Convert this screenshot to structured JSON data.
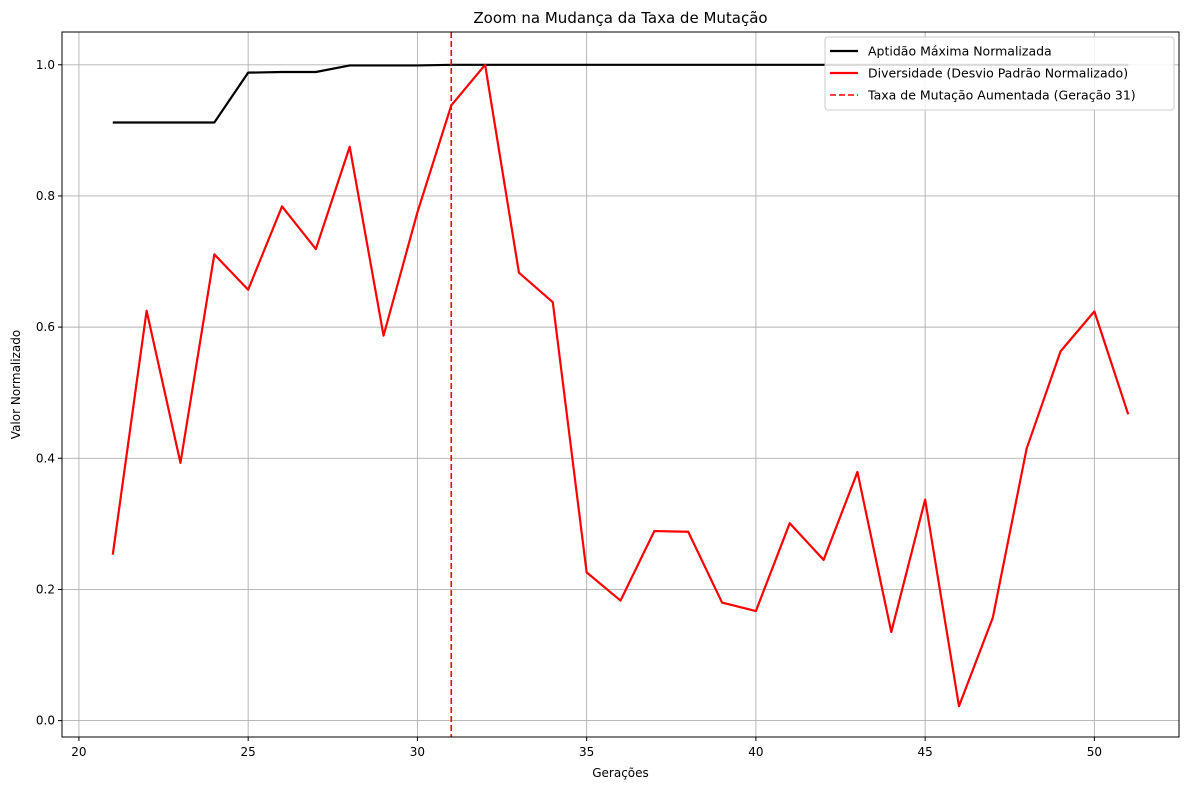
{
  "chart_data": {
    "type": "line",
    "title": "Zoom na Mudança da Taxa de Mutação",
    "xlabel": "Gerações",
    "ylabel": "Valor Normalizado",
    "xlim": [
      19.5,
      52.5
    ],
    "ylim": [
      -0.025,
      1.05
    ],
    "xticks": [
      20,
      25,
      30,
      35,
      40,
      45,
      50
    ],
    "yticks": [
      0.0,
      0.2,
      0.4,
      0.6,
      0.8,
      1.0
    ],
    "grid": true,
    "legend_position": "top-right",
    "x": [
      21,
      22,
      23,
      24,
      25,
      26,
      27,
      28,
      29,
      30,
      31,
      32,
      33,
      34,
      35,
      36,
      37,
      38,
      39,
      40,
      41,
      42,
      43,
      44,
      45,
      46,
      47,
      48,
      49,
      50,
      51
    ],
    "series": [
      {
        "name": "Aptidão Máxima Normalizada",
        "color": "#000000",
        "style": "solid",
        "values": [
          0.912,
          0.912,
          0.912,
          0.912,
          0.988,
          0.989,
          0.989,
          0.999,
          0.999,
          0.999,
          1.0,
          1.0,
          1.0,
          1.0,
          1.0,
          1.0,
          1.0,
          1.0,
          1.0,
          1.0,
          1.0,
          1.0,
          1.0,
          1.0,
          1.0,
          1.0,
          1.0,
          1.0,
          1.0,
          1.0,
          1.0
        ]
      },
      {
        "name": "Diversidade (Desvio Padrão Normalizado)",
        "color": "#ff0000",
        "style": "solid",
        "values": [
          0.253,
          0.625,
          0.393,
          0.711,
          0.657,
          0.784,
          0.719,
          0.875,
          0.587,
          0.775,
          0.938,
          1.0,
          0.683,
          0.638,
          0.226,
          0.183,
          0.289,
          0.288,
          0.18,
          0.167,
          0.301,
          0.245,
          0.379,
          0.135,
          0.337,
          0.022,
          0.157,
          0.415,
          0.563,
          0.624,
          0.467
        ]
      }
    ],
    "vline": {
      "x": 31,
      "name": "Taxa de Mutação Aumentada (Geração 31)",
      "color": "#ff0000",
      "style": "dashed"
    }
  }
}
